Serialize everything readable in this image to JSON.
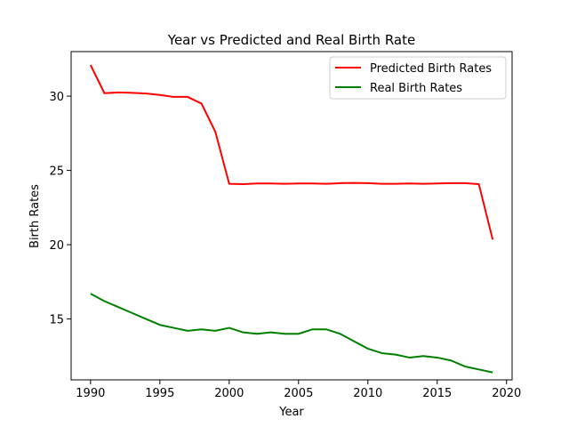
{
  "chart_data": {
    "type": "line",
    "title": "Year vs Predicted and Real Birth Rate",
    "xlabel": "Year",
    "ylabel": "Birth Rates",
    "xlim": [
      1988.6,
      2020.4
    ],
    "ylim": [
      10.9,
      33.0
    ],
    "xticks": [
      1990,
      1995,
      2000,
      2005,
      2010,
      2015,
      2020
    ],
    "yticks": [
      15,
      20,
      25,
      30
    ],
    "grid": false,
    "legend_position": "upper right",
    "x": [
      1990,
      1991,
      1992,
      1993,
      1994,
      1995,
      1996,
      1997,
      1998,
      1999,
      2000,
      2001,
      2002,
      2003,
      2004,
      2005,
      2006,
      2007,
      2008,
      2009,
      2010,
      2011,
      2012,
      2013,
      2014,
      2015,
      2016,
      2017,
      2018,
      2019
    ],
    "series": [
      {
        "name": "Predicted Birth Rates",
        "color": "#ff0000",
        "values": [
          32.1,
          30.2,
          30.25,
          30.22,
          30.18,
          30.08,
          29.95,
          29.95,
          29.5,
          27.6,
          24.1,
          24.08,
          24.12,
          24.12,
          24.1,
          24.12,
          24.12,
          24.1,
          24.14,
          24.16,
          24.14,
          24.1,
          24.1,
          24.12,
          24.1,
          24.12,
          24.14,
          24.14,
          24.08,
          20.35
        ]
      },
      {
        "name": "Real Birth Rates",
        "color": "#008000",
        "values": [
          16.7,
          16.2,
          15.8,
          15.4,
          15.0,
          14.6,
          14.4,
          14.2,
          14.3,
          14.2,
          14.4,
          14.1,
          14.0,
          14.1,
          14.0,
          14.0,
          14.3,
          14.3,
          14.0,
          13.5,
          13.0,
          12.7,
          12.6,
          12.4,
          12.5,
          12.4,
          12.2,
          11.8,
          11.6,
          11.4
        ]
      }
    ]
  }
}
